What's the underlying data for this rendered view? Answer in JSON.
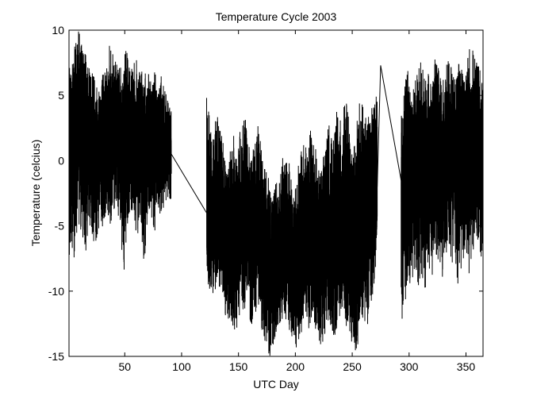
{
  "chart_data": {
    "type": "line",
    "title": "Temperature Cycle 2003",
    "xlabel": "UTC Day",
    "ylabel": "Temperature (celcius)",
    "xlim": [
      1,
      365
    ],
    "ylim": [
      -15,
      10
    ],
    "x_ticks": [
      50,
      100,
      150,
      200,
      250,
      300,
      350
    ],
    "y_ticks": [
      -15,
      -10,
      -5,
      0,
      5,
      10
    ],
    "grid": false,
    "line_color": "#000000",
    "series": [
      {
        "segments": [
          {
            "x": [
              1,
              4,
              7,
              10,
              13,
              16,
              19,
              22,
              25,
              28,
              31,
              34,
              37,
              40,
              43,
              46,
              49,
              52,
              55,
              58,
              61,
              64,
              67,
              70,
              73,
              76,
              79,
              82,
              85,
              88,
              91
            ],
            "mean": [
              1.5,
              1.8,
              2.2,
              2.6,
              2.4,
              2.0,
              1.6,
              1.2,
              1.0,
              1.2,
              1.5,
              1.8,
              2.0,
              1.8,
              1.6,
              1.5,
              1.4,
              1.6,
              1.8,
              2.0,
              1.8,
              1.5,
              1.2,
              1.0,
              1.0,
              1.2,
              1.3,
              1.2,
              1.0,
              0.8,
              0.7
            ],
            "low": [
              -7,
              -9,
              -6,
              -5,
              -6,
              -7,
              -5,
              -6,
              -7,
              -5,
              -6,
              -4,
              -5,
              -4,
              -3,
              -6,
              -9,
              -5,
              -4,
              -5,
              -6,
              -4,
              -9.5,
              -5,
              -4,
              -6,
              -4,
              -5,
              -4,
              -3,
              -3
            ],
            "high": [
              7,
              8,
              10,
              10,
              9,
              8,
              7,
              7.5,
              6,
              6.5,
              7,
              8,
              9,
              8.5,
              7.5,
              7,
              8,
              9,
              7,
              7.5,
              8,
              7,
              6.5,
              7,
              6,
              7.5,
              6,
              6.5,
              5.5,
              4.5,
              4
            ]
          },
          {
            "x": [
              122,
              125,
              128,
              131,
              134,
              137,
              140,
              143,
              146,
              149,
              152,
              155,
              158,
              161,
              164,
              167,
              170,
              173,
              176,
              179,
              182,
              185,
              188,
              191,
              194,
              197,
              200,
              203,
              206,
              209,
              212,
              215,
              218,
              221,
              224,
              227,
              230,
              233,
              236,
              239,
              242,
              245,
              248,
              251,
              254,
              257,
              260,
              263,
              266,
              269,
              272
            ],
            "mean": [
              -4,
              -5,
              -4,
              -3,
              -3.5,
              -5,
              -6,
              -7,
              -6.5,
              -6,
              -5,
              -4.5,
              -5,
              -6,
              -5.5,
              -5,
              -6,
              -7,
              -8,
              -9,
              -8,
              -7.5,
              -7,
              -6,
              -6.5,
              -7,
              -8,
              -7,
              -6.5,
              -6,
              -5.5,
              -5,
              -6,
              -7,
              -6.5,
              -6,
              -5.5,
              -6,
              -5,
              -5,
              -4.5,
              -5,
              -6,
              -7,
              -5.5,
              -5,
              -5,
              -5,
              -4,
              -3.5,
              -3
            ],
            "low": [
              -9,
              -10,
              -11,
              -9,
              -10,
              -11,
              -13,
              -12,
              -13,
              -14,
              -11,
              -12,
              -10,
              -13,
              -12,
              -11,
              -13,
              -14,
              -15,
              -15,
              -14,
              -13,
              -13,
              -12,
              -13,
              -14,
              -15,
              -14,
              -13,
              -12,
              -13,
              -12,
              -13,
              -15,
              -14,
              -13,
              -12,
              -14,
              -13,
              -12,
              -11,
              -13,
              -14,
              -15,
              -15,
              -13,
              -12,
              -13,
              -11,
              -10,
              -8
            ],
            "high": [
              5,
              3,
              2,
              4,
              3,
              1,
              0,
              1,
              2,
              0,
              3,
              4,
              2,
              0,
              2,
              3,
              1,
              0,
              -1,
              -3,
              -2,
              -1,
              0,
              1,
              0,
              -1,
              -2,
              0,
              1,
              2,
              2,
              3,
              1,
              -1,
              0,
              2,
              3,
              1,
              4,
              3,
              4,
              5,
              2,
              1,
              3,
              5,
              4,
              3,
              4,
              5,
              5
            ]
          },
          {
            "x": [
              293,
              296,
              299,
              302,
              305,
              308,
              311,
              314,
              317,
              320,
              323,
              326,
              329,
              332,
              335,
              338,
              341,
              344,
              347,
              350,
              353,
              356,
              359,
              362,
              365
            ],
            "mean": [
              -3,
              -2,
              -1,
              -0.5,
              -1,
              -1.5,
              -1,
              -0.5,
              0,
              -0.5,
              0,
              0.5,
              0.5,
              0,
              0.5,
              1,
              1,
              0.5,
              1,
              1.5,
              1,
              1.5,
              1,
              0.5,
              0.5
            ],
            "low": [
              -13,
              -11,
              -10,
              -9,
              -9,
              -10,
              -9,
              -10,
              -8,
              -9,
              -7,
              -8,
              -9,
              -8,
              -7,
              -8,
              -9,
              -10,
              -8,
              -7,
              -9,
              -7,
              -6,
              -7,
              -8
            ],
            "high": [
              5,
              6,
              7,
              5,
              6,
              7,
              8,
              6,
              7,
              6,
              8,
              7,
              6,
              7,
              8,
              7,
              6,
              8,
              7,
              8,
              9,
              9,
              8,
              7,
              6
            ]
          }
        ],
        "gap_connectors": [
          {
            "x": [
              91,
              122
            ],
            "y": [
              0.5,
              -4
            ]
          },
          {
            "x": [
              272,
              275,
              293
            ],
            "y": [
              -2,
              7.3,
              -1.5
            ]
          }
        ]
      }
    ]
  }
}
